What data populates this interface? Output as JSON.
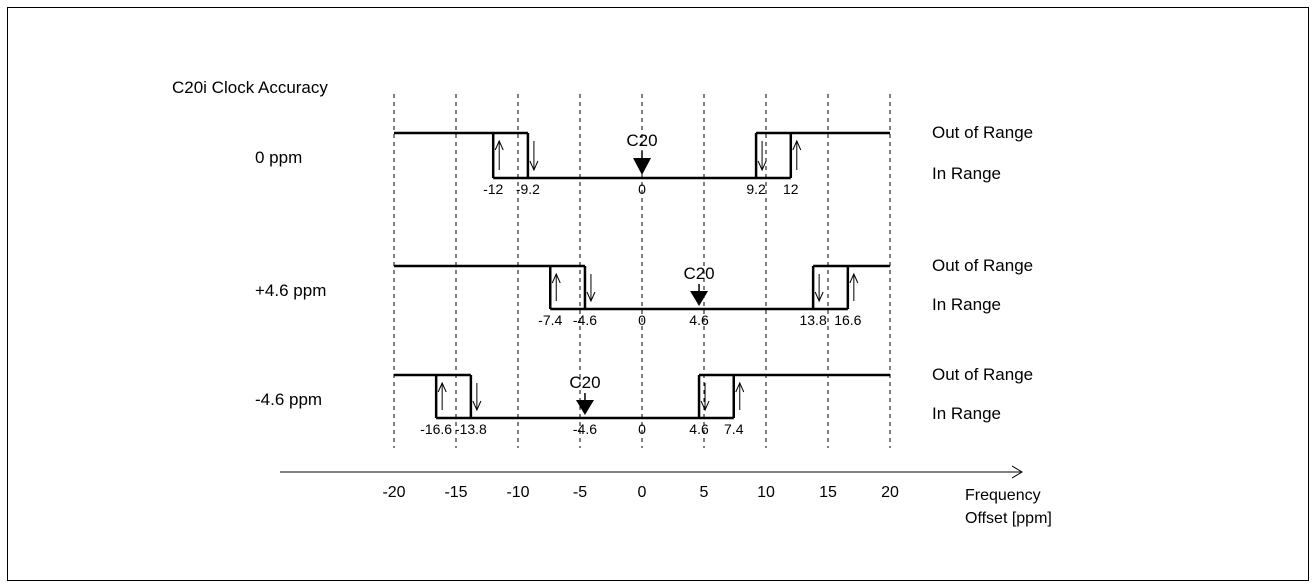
{
  "title": "C20i Clock  Accuracy",
  "colors": {
    "line": "#000000",
    "frame": "#000000",
    "background": "#ffffff"
  },
  "axis": {
    "ticks": [
      -20,
      -15,
      -10,
      -5,
      0,
      5,
      10,
      15,
      20
    ],
    "tick_labels": [
      "-20",
      "-15",
      "-10",
      "-5",
      "0",
      "5",
      "10",
      "15",
      "20"
    ],
    "label_line1": "Frequency",
    "label_line2": "Offset [ppm]",
    "range": [
      -20,
      20
    ],
    "grid": "dashed vertical lines at each tick"
  },
  "state_labels": {
    "out": "Out of Range",
    "in": "In Range"
  },
  "marker_label": "C20",
  "rows": [
    {
      "label": "0 ppm",
      "marker_at": 0,
      "inner": [
        -9.2,
        9.2
      ],
      "outer": [
        -12,
        12
      ],
      "edge_labels": [
        "-12",
        "-9.2",
        "0",
        "9.2",
        "12"
      ],
      "edge_values": [
        -12,
        -9.2,
        0,
        9.2,
        12
      ]
    },
    {
      "label": "+4.6 ppm",
      "marker_at": 4.6,
      "inner": [
        -4.6,
        13.8
      ],
      "outer": [
        -7.4,
        16.6
      ],
      "edge_labels": [
        "-7.4",
        "-4.6",
        "0",
        "4.6",
        "13.8",
        "16.6"
      ],
      "edge_values": [
        -7.4,
        -4.6,
        0,
        4.6,
        13.8,
        16.6
      ]
    },
    {
      "label": "-4.6 ppm",
      "marker_at": -4.6,
      "inner": [
        -13.8,
        4.6
      ],
      "outer": [
        -16.6,
        7.4
      ],
      "edge_labels": [
        "-16.6",
        "-13.8",
        "-4.6",
        "0",
        "4.6",
        "7.4"
      ],
      "edge_values": [
        -16.6,
        -13.8,
        -4.6,
        0,
        4.6,
        7.4
      ]
    }
  ]
}
